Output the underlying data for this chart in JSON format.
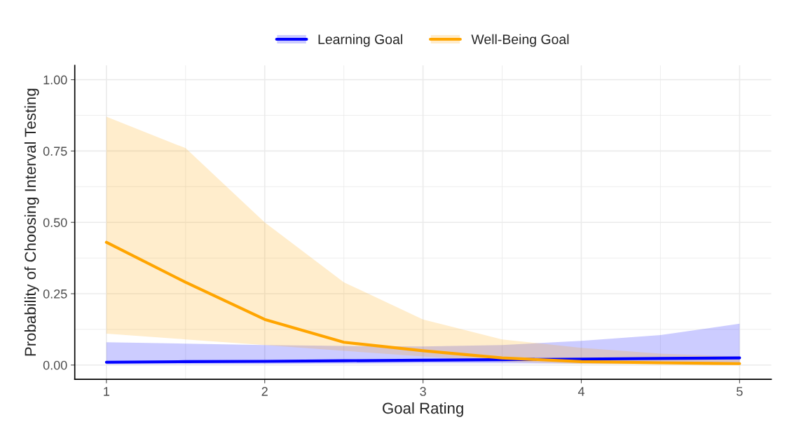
{
  "chart_data": {
    "type": "line",
    "xlabel": "Goal Rating",
    "ylabel": "Probability of Choosing Interval Testing",
    "x": [
      1,
      1.5,
      2,
      2.5,
      3,
      3.5,
      4,
      4.5,
      5
    ],
    "series": [
      {
        "name": "Learning Goal",
        "color": "#0000ff",
        "values": [
          0.01,
          0.012,
          0.013,
          0.015,
          0.017,
          0.019,
          0.021,
          0.023,
          0.025
        ],
        "lower": [
          0.002,
          0.003,
          0.004,
          0.005,
          0.006,
          0.006,
          0.005,
          0.005,
          0.004
        ],
        "upper": [
          0.08,
          0.075,
          0.07,
          0.067,
          0.065,
          0.07,
          0.085,
          0.105,
          0.145
        ]
      },
      {
        "name": "Well-Being Goal",
        "color": "#ffa500",
        "values": [
          0.43,
          0.29,
          0.16,
          0.08,
          0.05,
          0.025,
          0.012,
          0.008,
          0.005
        ],
        "lower": [
          0.11,
          0.09,
          0.07,
          0.05,
          0.03,
          0.012,
          0.004,
          0.001,
          0.0
        ],
        "upper": [
          0.87,
          0.76,
          0.5,
          0.29,
          0.16,
          0.09,
          0.06,
          0.04,
          0.03
        ]
      }
    ],
    "xlim": [
      0.8,
      5.2
    ],
    "xticks": [
      1,
      2,
      3,
      4,
      5
    ],
    "ylim": [
      -0.05,
      1.05
    ],
    "yticks": [
      {
        "value": 0,
        "label": "0.00"
      },
      {
        "value": 0.25,
        "label": "0.25"
      },
      {
        "value": 0.5,
        "label": "0.50"
      },
      {
        "value": 0.75,
        "label": "0.75"
      },
      {
        "value": 1,
        "label": "1.00"
      }
    ],
    "grid": true,
    "legend": "top"
  }
}
